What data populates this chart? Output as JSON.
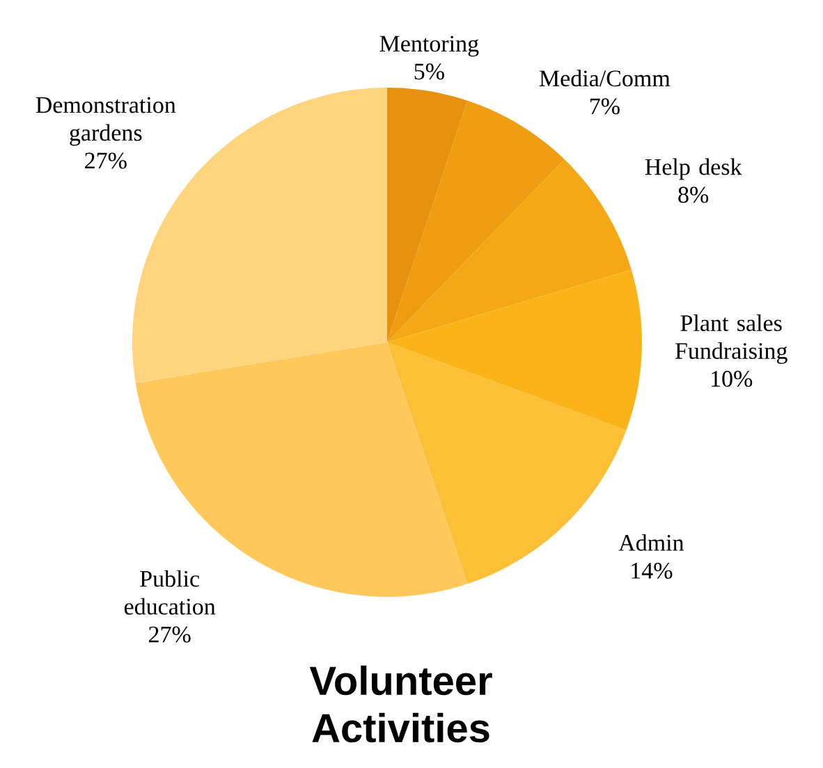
{
  "chart_data": {
    "type": "pie",
    "title": "Volunteer Activities",
    "categories": [
      "Mentoring",
      "Media/Comm",
      "Help desk",
      "Plant sales Fundraising",
      "Admin",
      "Public education",
      "Demonstration gardens"
    ],
    "values": [
      5,
      7,
      8,
      10,
      14,
      27,
      27
    ],
    "value_labels": [
      "5%",
      "7%",
      "8%",
      "10%",
      "14%",
      "27%",
      "27%"
    ],
    "colors": [
      "#e8900f",
      "#ef9d10",
      "#f5a816",
      "#fbb417",
      "#fdbf35",
      "#fec95a",
      "#fed57e"
    ]
  }
}
